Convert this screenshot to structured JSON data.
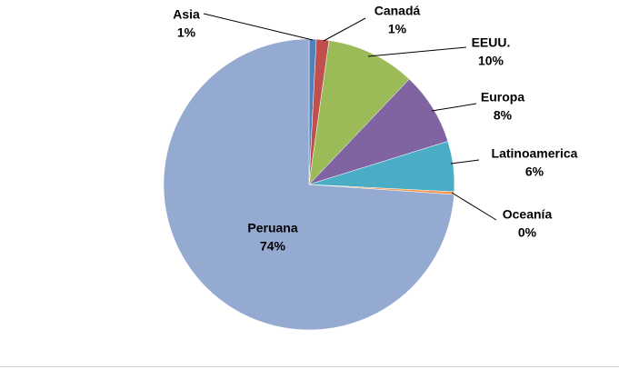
{
  "chart_data": {
    "type": "pie",
    "categories": [
      "Asia",
      "Canadá",
      "EEUU.",
      "Europa",
      "Latinoamerica",
      "Oceanía",
      "Peruana"
    ],
    "values": [
      0.8,
      1.4,
      9.9,
      8.1,
      5.6,
      0.3,
      73.9
    ],
    "value_labels": [
      "1%",
      "1%",
      "10%",
      "8%",
      "6%",
      "0%",
      "74%"
    ],
    "colors": [
      "#4f81bd",
      "#c0504d",
      "#9bbb59",
      "#8064a2",
      "#4bacc6",
      "#f79646",
      "#95aad1"
    ]
  }
}
